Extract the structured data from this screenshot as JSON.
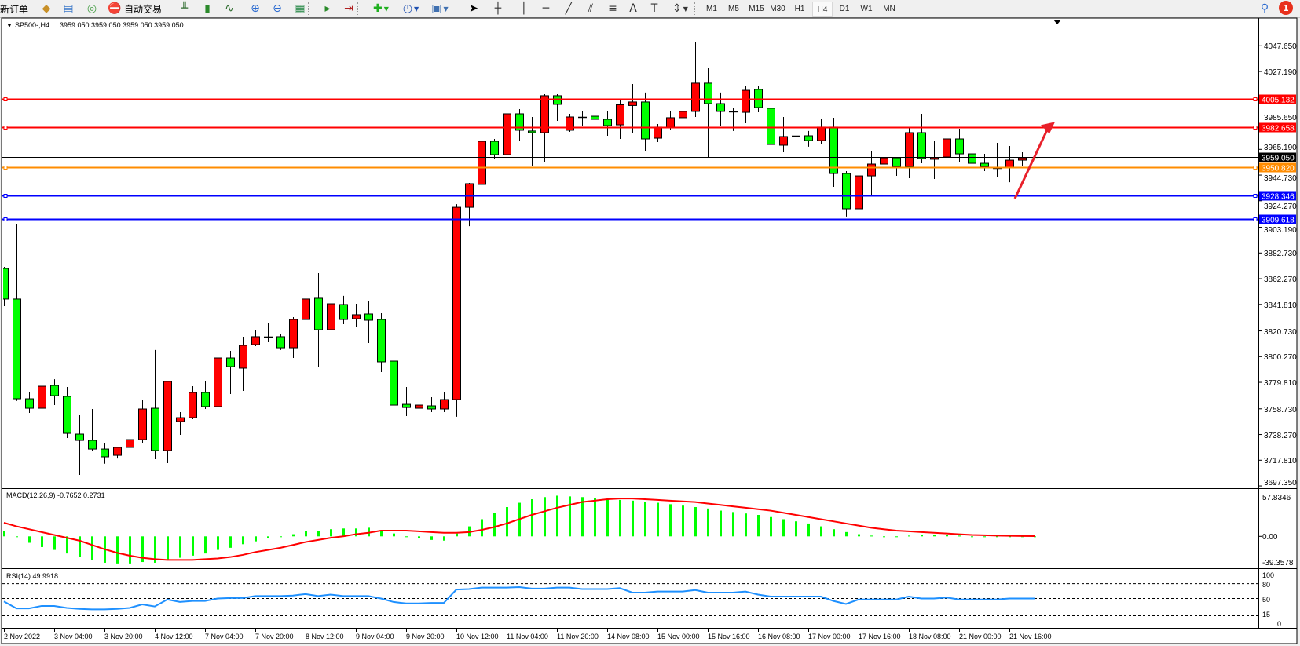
{
  "toolbar": {
    "new_order": "新订单",
    "auto_trading": "自动交易",
    "icons": [
      {
        "name": "market-watch-icon",
        "glyph": "◆",
        "color": "#c89028"
      },
      {
        "name": "data-window-icon",
        "glyph": "▤",
        "color": "#3a78c8"
      },
      {
        "name": "navigator-icon",
        "glyph": "◎",
        "color": "#4aa04a"
      },
      {
        "name": "auto-trading-icon",
        "glyph": "⛔",
        "color": "#d03020"
      },
      {
        "name": "bar-chart-icon",
        "glyph": "╨",
        "color": "#2c6a2c"
      },
      {
        "name": "candlestick-chart-icon",
        "glyph": "▮",
        "color": "#2c8a2c"
      },
      {
        "name": "line-chart-icon",
        "glyph": "∿",
        "color": "#2c6a2c"
      },
      {
        "name": "zoom-in-icon",
        "glyph": "⊕",
        "color": "#2a6ad0"
      },
      {
        "name": "zoom-out-icon",
        "glyph": "⊖",
        "color": "#2a6ad0"
      },
      {
        "name": "tile-windows-icon",
        "glyph": "▦",
        "color": "#2a8a4a"
      },
      {
        "name": "auto-scroll-icon",
        "glyph": "▸",
        "color": "#2a8a2a"
      },
      {
        "name": "chart-shift-icon",
        "glyph": "⇥",
        "color": "#b02020"
      },
      {
        "name": "indicators-icon",
        "glyph": "✚",
        "color": "#20b020"
      },
      {
        "name": "periods-icon",
        "glyph": "◷",
        "color": "#2050b0"
      },
      {
        "name": "templates-icon",
        "glyph": "▣",
        "color": "#4070b0"
      },
      {
        "name": "cursor-icon",
        "glyph": "➤",
        "color": "#000000"
      },
      {
        "name": "crosshair-icon",
        "glyph": "┼",
        "color": "#333333"
      },
      {
        "name": "vertical-line-icon",
        "glyph": "│",
        "color": "#333333"
      },
      {
        "name": "horizontal-line-icon",
        "glyph": "─",
        "color": "#333333"
      },
      {
        "name": "trendline-icon",
        "glyph": "╱",
        "color": "#333333"
      },
      {
        "name": "equidistant-channel-icon",
        "glyph": "⫽",
        "color": "#333333"
      },
      {
        "name": "fibonacci-icon",
        "glyph": "≡",
        "color": "#333333"
      },
      {
        "name": "text-icon",
        "glyph": "A",
        "color": "#333333"
      },
      {
        "name": "text-label-icon",
        "glyph": "T",
        "color": "#333333"
      },
      {
        "name": "arrows-icon",
        "glyph": "⇕",
        "color": "#333333"
      }
    ],
    "timeframes": [
      "M1",
      "M5",
      "M15",
      "M30",
      "H1",
      "H4",
      "D1",
      "W1",
      "MN"
    ],
    "active_timeframe": "H4",
    "search_icon": "search-icon",
    "notification_count": "1"
  },
  "chart_header": {
    "symbol_label": "SP500-,H4",
    "ohlc_text": "3959.050 3959.050 3959.050 3959.050"
  },
  "colors": {
    "bull_candle": "#ff0000",
    "bear_candle": "#00ff00",
    "resistance": "#ff0000",
    "support": "#0000ff",
    "pivot": "#ff8c00",
    "bid": "#000000",
    "macd_histogram": "#00ff00",
    "macd_signal": "#ff0000",
    "rsi": "#1e90ff",
    "arrow": "#e8202a"
  },
  "chart_data": [
    {
      "type": "candlestick",
      "symbol": "SP500-",
      "timeframe": "H4",
      "price_ticks": [
        "4047.650",
        "4027.190",
        "3985.650",
        "3965.190",
        "3944.730",
        "3924.270",
        "3903.190",
        "3882.730",
        "3862.270",
        "3841.810",
        "3820.730",
        "3800.270",
        "3779.810",
        "3758.730",
        "3738.270",
        "3717.810",
        "3697.350"
      ],
      "ylim": [
        3697.35,
        4047.65
      ],
      "time_labels": [
        "2 Nov 2022",
        "3 Nov 04:00",
        "3 Nov 20:00",
        "4 Nov 12:00",
        "7 Nov 04:00",
        "7 Nov 20:00",
        "8 Nov 12:00",
        "9 Nov 04:00",
        "9 Nov 20:00",
        "10 Nov 12:00",
        "11 Nov 04:00",
        "11 Nov 20:00",
        "14 Nov 08:00",
        "15 Nov 00:00",
        "15 Nov 16:00",
        "16 Nov 08:00",
        "17 Nov 00:00",
        "17 Nov 16:00",
        "18 Nov 08:00",
        "21 Nov 00:00",
        "21 Nov 16:00"
      ],
      "candles_ohlc": [
        [
          3870.4,
          3871.7,
          3840.4,
          3846.1
        ],
        [
          3846.1,
          3905.4,
          3765.0,
          3766.7
        ],
        [
          3766.7,
          3772.3,
          3755.5,
          3759.2
        ],
        [
          3759.2,
          3779.8,
          3756.1,
          3776.7
        ],
        [
          3777.3,
          3782.3,
          3761.7,
          3769.2
        ],
        [
          3768.6,
          3776.1,
          3735.5,
          3739.2
        ],
        [
          3738.6,
          3753.6,
          3706.1,
          3733.6
        ],
        [
          3733.6,
          3758.6,
          3724.9,
          3726.7
        ],
        [
          3726.7,
          3731.1,
          3715.0,
          3720.5
        ],
        [
          3721.7,
          3728.6,
          3719.2,
          3728.0
        ],
        [
          3728.0,
          3749.9,
          3726.7,
          3734.2
        ],
        [
          3734.2,
          3766.1,
          3731.7,
          3758.6
        ],
        [
          3759.2,
          3805.5,
          3718.6,
          3725.5
        ],
        [
          3725.5,
          3781.1,
          3715.5,
          3780.5
        ],
        [
          3748.6,
          3756.1,
          3738.0,
          3751.7
        ],
        [
          3751.7,
          3776.7,
          3750.5,
          3771.7
        ],
        [
          3771.7,
          3781.1,
          3758.6,
          3760.5
        ],
        [
          3760.5,
          3804.8,
          3756.7,
          3799.2
        ],
        [
          3799.2,
          3804.8,
          3770.5,
          3792.3
        ],
        [
          3791.1,
          3816.1,
          3773.0,
          3809.2
        ],
        [
          3809.8,
          3821.7,
          3808.6,
          3816.1
        ],
        [
          3816.1,
          3827.3,
          3811.7,
          3816.1
        ],
        [
          3816.1,
          3818.0,
          3805.5,
          3807.3
        ],
        [
          3807.3,
          3831.7,
          3799.2,
          3829.8
        ],
        [
          3829.8,
          3848.6,
          3809.8,
          3846.1
        ],
        [
          3846.7,
          3866.7,
          3791.7,
          3821.7
        ],
        [
          3821.7,
          3856.7,
          3820.5,
          3842.3
        ],
        [
          3841.7,
          3848.6,
          3826.1,
          3829.8
        ],
        [
          3830.4,
          3842.3,
          3824.2,
          3833.6
        ],
        [
          3834.2,
          3844.8,
          3811.1,
          3829.2
        ],
        [
          3829.8,
          3834.8,
          3788.0,
          3796.1
        ],
        [
          3796.7,
          3816.7,
          3759.2,
          3761.7
        ],
        [
          3762.3,
          3776.1,
          3753.0,
          3759.8
        ],
        [
          3759.2,
          3766.7,
          3756.1,
          3761.7
        ],
        [
          3761.1,
          3768.0,
          3756.1,
          3758.6
        ],
        [
          3758.6,
          3771.7,
          3756.1,
          3766.1
        ],
        [
          3766.1,
          3921.6,
          3752.4,
          3919.1
        ],
        [
          3919.1,
          3938.5,
          3904.1,
          3937.9
        ],
        [
          3937.3,
          3974.1,
          3934.8,
          3971.6
        ],
        [
          3971.6,
          3973.5,
          3957.3,
          3961.0
        ],
        [
          3961.0,
          3994.7,
          3959.1,
          3993.5
        ],
        [
          3993.5,
          3997.2,
          3972.2,
          3980.4
        ],
        [
          3979.8,
          3991.0,
          3951.6,
          3978.5
        ],
        [
          3978.5,
          4009.1,
          3954.8,
          4007.9
        ],
        [
          4007.9,
          4009.1,
          3987.9,
          4001.0
        ],
        [
          3980.4,
          3993.5,
          3979.1,
          3991.0
        ],
        [
          3991.0,
          3995.4,
          3983.5,
          3991.0
        ],
        [
          3991.6,
          3992.9,
          3981.0,
          3989.1
        ],
        [
          3989.1,
          3996.0,
          3976.0,
          3984.1
        ],
        [
          3984.7,
          4004.7,
          3973.5,
          4000.7
        ],
        [
          4000.1,
          4017.2,
          3977.9,
          4002.9
        ],
        [
          4002.9,
          4010.4,
          3963.5,
          3973.5
        ],
        [
          3974.1,
          3985.4,
          3971.0,
          3982.9
        ],
        [
          3982.9,
          3996.0,
          3981.0,
          3990.4
        ],
        [
          3990.4,
          3999.1,
          3985.4,
          3995.4
        ],
        [
          3995.4,
          4050.3,
          3991.0,
          4017.9
        ],
        [
          4017.9,
          4030.3,
          3959.1,
          4001.6
        ],
        [
          4001.6,
          4010.4,
          3983.5,
          3995.4
        ],
        [
          3995.4,
          3998.5,
          3979.8,
          3995.4
        ],
        [
          3994.7,
          4015.4,
          3986.0,
          4012.2
        ],
        [
          4012.9,
          4015.4,
          3994.7,
          3998.5
        ],
        [
          3997.9,
          4001.6,
          3965.4,
          3969.1
        ],
        [
          3968.5,
          3991.0,
          3962.9,
          3975.4
        ],
        [
          3976.0,
          3978.5,
          3961.0,
          3976.0
        ],
        [
          3976.0,
          3979.8,
          3967.3,
          3972.2
        ],
        [
          3972.2,
          3989.1,
          3969.1,
          3982.9
        ],
        [
          3982.9,
          3990.4,
          3935.4,
          3946.0
        ],
        [
          3946.0,
          3947.9,
          3911.7,
          3917.9
        ],
        [
          3917.9,
          3961.6,
          3914.8,
          3944.1
        ],
        [
          3944.1,
          3963.5,
          3929.1,
          3953.5
        ],
        [
          3953.5,
          3961.6,
          3951.6,
          3958.5
        ],
        [
          3958.5,
          3958.5,
          3944.1,
          3951.6
        ],
        [
          3951.6,
          3982.2,
          3942.3,
          3978.5
        ],
        [
          3978.5,
          3993.5,
          3954.1,
          3957.9
        ],
        [
          3957.3,
          3972.2,
          3941.6,
          3958.5
        ],
        [
          3959.1,
          3982.2,
          3957.9,
          3973.5
        ],
        [
          3973.5,
          3981.6,
          3955.4,
          3961.6
        ],
        [
          3961.6,
          3964.1,
          3952.9,
          3954.1
        ],
        [
          3954.1,
          3961.6,
          3947.9,
          3951.6
        ],
        [
          3950.4,
          3970.4,
          3943.5,
          3950.4
        ],
        [
          3950.4,
          3967.9,
          3939.1,
          3956.6
        ],
        [
          3956.6,
          3962.9,
          3951.6,
          3958.5
        ],
        [
          3959.05,
          3959.05,
          3959.05,
          3959.05
        ]
      ],
      "horizontal_levels": [
        {
          "price": "4005.132",
          "role": "resistance"
        },
        {
          "price": "3982.658",
          "role": "resistance"
        },
        {
          "price": "3959.050",
          "role": "bid"
        },
        {
          "price": "3950.820",
          "role": "pivot"
        },
        {
          "price": "3928.346",
          "role": "support"
        },
        {
          "price": "3909.618",
          "role": "support"
        }
      ],
      "annotation": {
        "type": "arrow",
        "direction": "up-right",
        "from_price": 3926,
        "to_price": 3987
      }
    },
    {
      "type": "bar+line",
      "title": "MACD(12,26,9) -0.7652 0.2731",
      "axis_labels": [
        "57.8346",
        "0.00",
        "-39.3578"
      ],
      "ylim": [
        -39.3578,
        57.8346
      ],
      "histogram": [
        8,
        -1,
        -9,
        -15,
        -19,
        -24,
        -29,
        -33,
        -37,
        -38,
        -38,
        -36,
        -37,
        -32,
        -30,
        -27,
        -24,
        -19,
        -16,
        -11,
        -7,
        -3,
        -1,
        3,
        7,
        8,
        10,
        11,
        11,
        12,
        8,
        4,
        0,
        -3,
        -5,
        -6,
        4,
        14,
        24,
        33,
        41,
        47,
        52,
        55,
        57,
        56,
        55,
        54,
        52,
        51,
        50,
        48,
        47,
        45,
        43,
        41,
        39,
        36,
        34,
        32,
        30,
        27,
        24,
        21,
        18,
        14,
        10,
        6,
        3,
        1,
        0,
        0,
        1,
        2,
        2,
        2,
        1,
        0,
        -1,
        -1,
        -1,
        -1,
        -0.7652
      ],
      "signal": [
        19,
        14,
        10,
        6,
        2,
        -2,
        -6,
        -12,
        -18,
        -23,
        -27,
        -30,
        -32,
        -33,
        -33,
        -33,
        -32,
        -31,
        -29,
        -26,
        -22,
        -19,
        -16,
        -12,
        -8,
        -5,
        -2,
        0,
        3,
        5,
        8,
        8,
        8,
        7,
        6,
        5,
        5,
        6,
        9,
        13,
        18,
        24,
        30,
        35,
        40,
        44,
        48,
        50,
        52,
        53,
        53,
        52,
        51,
        50,
        49,
        48,
        46,
        44,
        42,
        40,
        38,
        36,
        33,
        30,
        27,
        24,
        21,
        18,
        15,
        12,
        10,
        8,
        7,
        6,
        5,
        4,
        3,
        2,
        1.5,
        1,
        0.7,
        0.5,
        0.2731
      ]
    },
    {
      "type": "line",
      "title": "RSI(14) 49.9918",
      "axis_labels": [
        "100",
        "80",
        "50",
        "15",
        "0"
      ],
      "levels": [
        80,
        50,
        15
      ],
      "ylim": [
        0,
        100
      ],
      "values": [
        44,
        30,
        30,
        35,
        35,
        31,
        29,
        28,
        28,
        29,
        31,
        38,
        34,
        48,
        43,
        45,
        45,
        50,
        51,
        51,
        55,
        55,
        55,
        56,
        59,
        55,
        58,
        55,
        55,
        55,
        50,
        43,
        40,
        40,
        41,
        41,
        68,
        69,
        72,
        72,
        72,
        73,
        70,
        70,
        72,
        72,
        69,
        69,
        69,
        71,
        62,
        62,
        64,
        64,
        64,
        67,
        62,
        62,
        62,
        64,
        58,
        54,
        54,
        54,
        54,
        54,
        45,
        39,
        48,
        48,
        48,
        48,
        54,
        50,
        50,
        52,
        48,
        48,
        48,
        48,
        50,
        50,
        49.9918
      ]
    }
  ]
}
